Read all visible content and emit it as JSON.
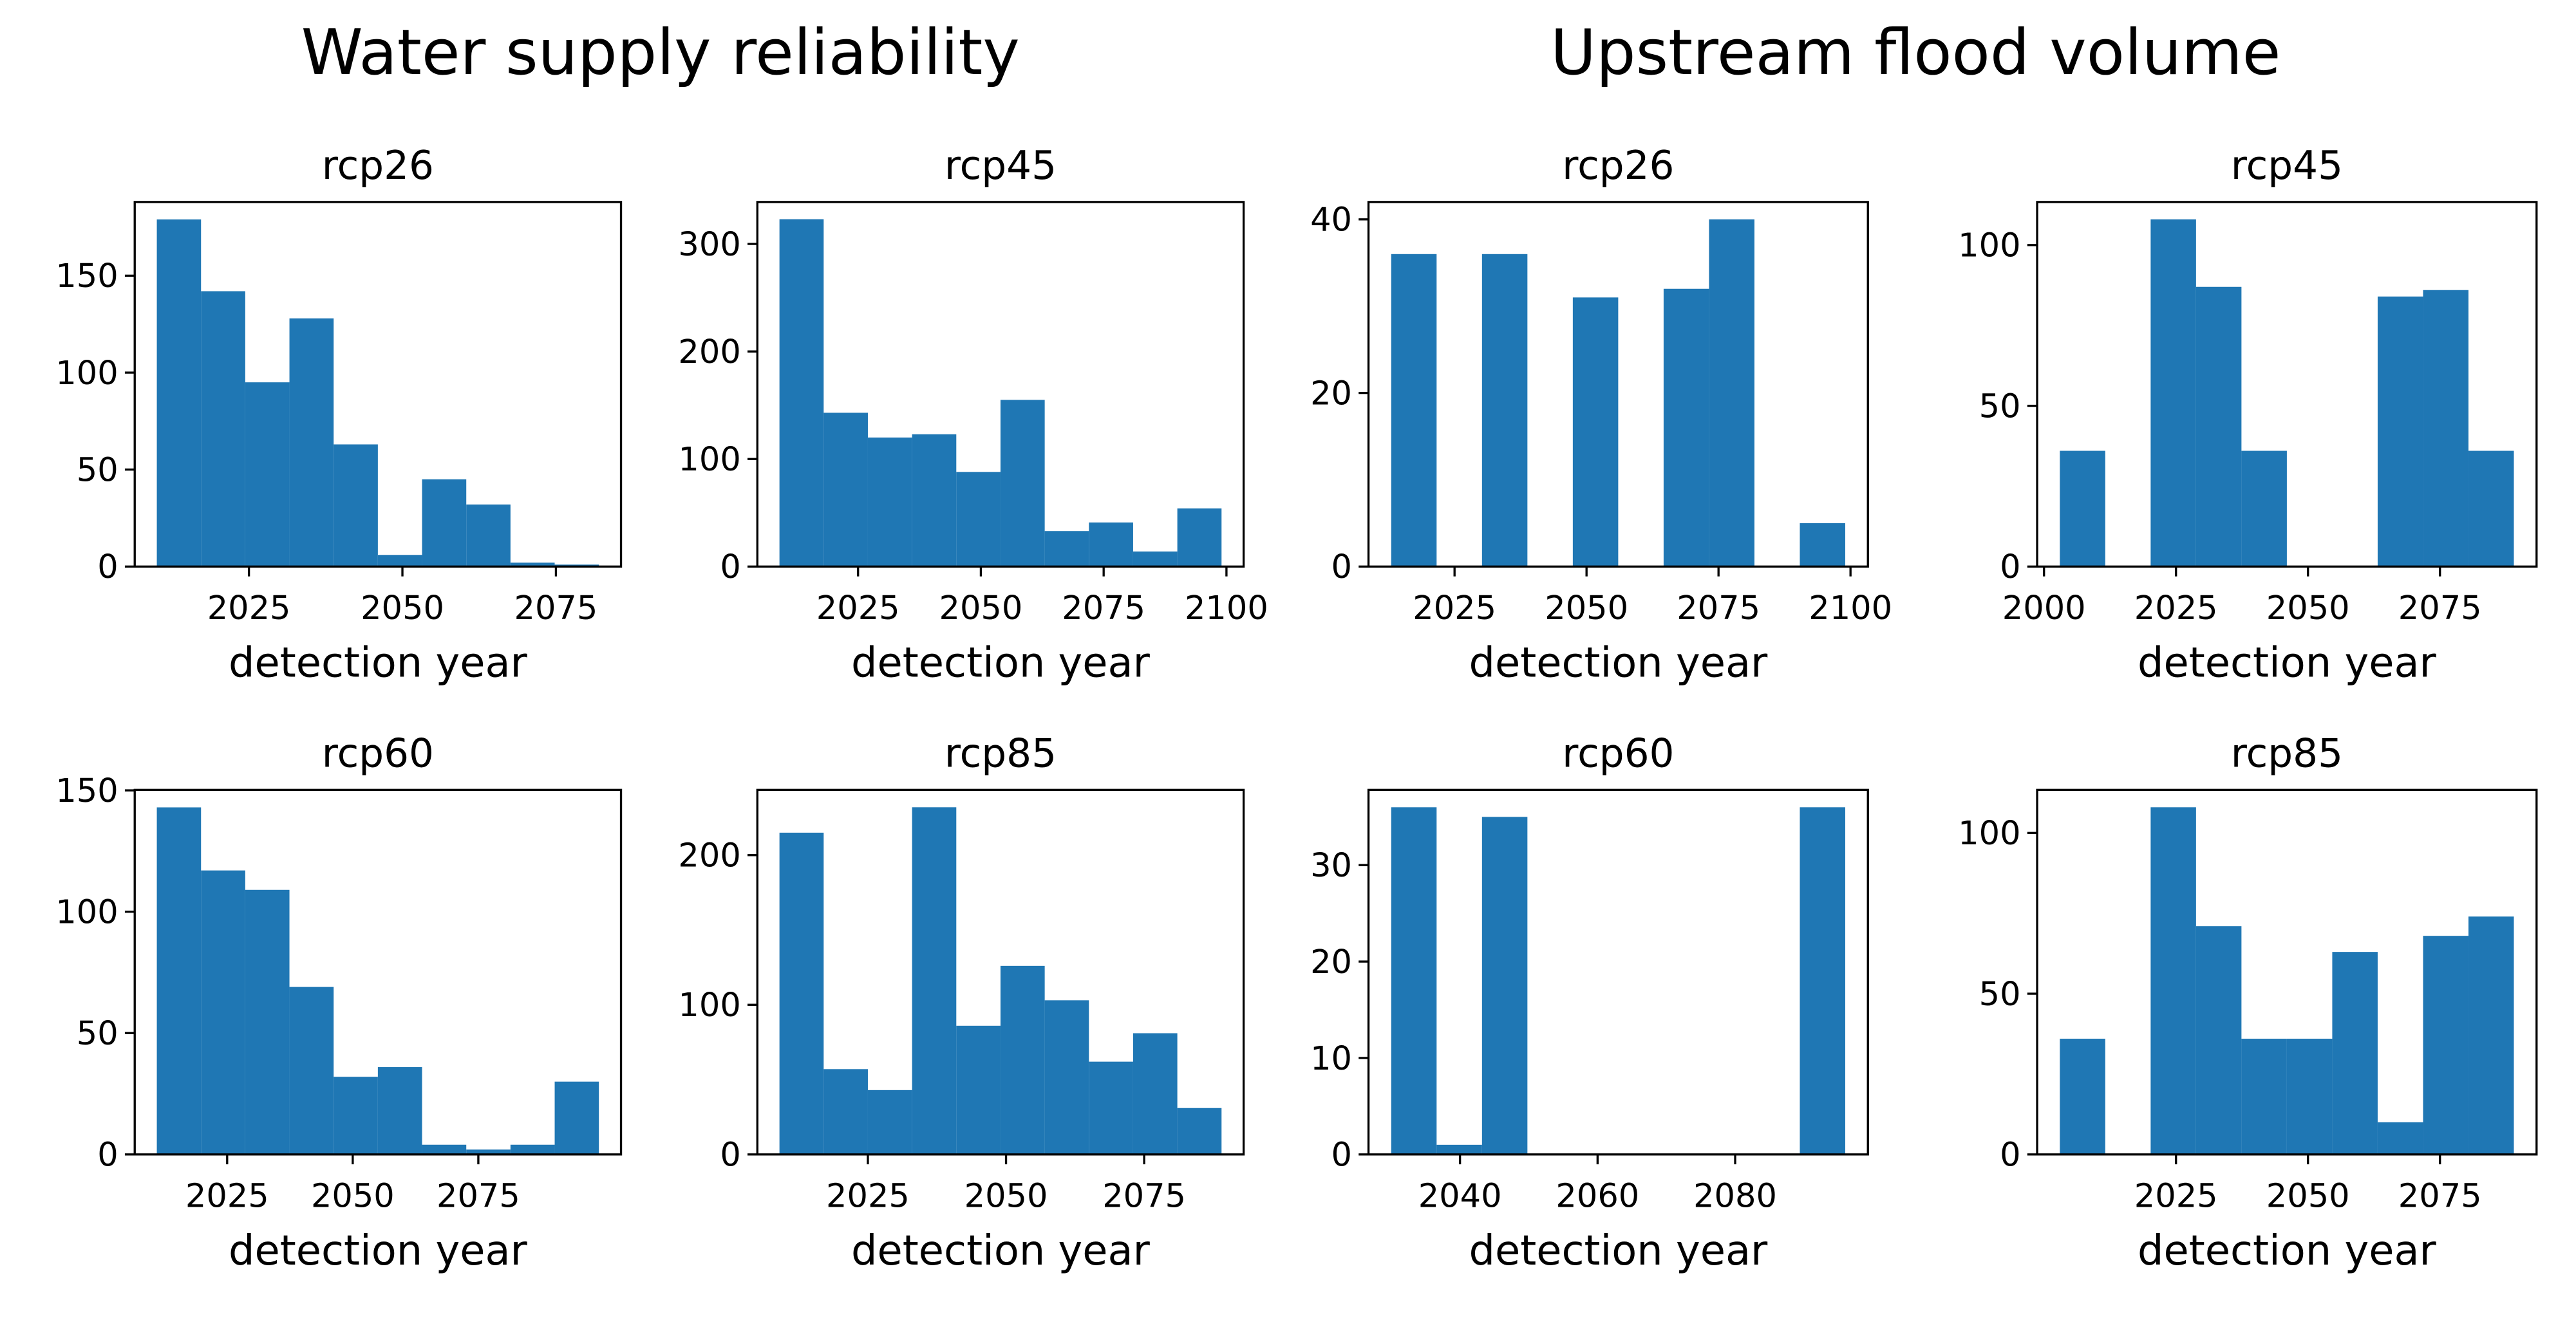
{
  "figure_titles": [
    "Water supply reliability",
    "Upstream flood volume"
  ],
  "chart_data": [
    {
      "type": "histogram",
      "title": "rcp26",
      "xlabel": "detection year",
      "color": "#1f77b4",
      "bins": [
        2010,
        2017.2,
        2024.4,
        2031.6,
        2038.8,
        2046,
        2053.2,
        2060.4,
        2067.6,
        2074.8,
        2082
      ],
      "counts": [
        179,
        142,
        95,
        128,
        63,
        6,
        45,
        32,
        2,
        1
      ],
      "xlim": [
        2006.4,
        2085.6
      ],
      "xticks": [
        2025,
        2050,
        2075
      ],
      "ylim": [
        0,
        188
      ],
      "yticks": [
        0,
        50,
        100,
        150
      ]
    },
    {
      "type": "histogram",
      "title": "rcp45",
      "xlabel": "detection year",
      "color": "#1f77b4",
      "bins": [
        2009,
        2018,
        2027,
        2036,
        2045,
        2054,
        2063,
        2072,
        2081,
        2090,
        2099
      ],
      "counts": [
        323,
        143,
        120,
        123,
        88,
        155,
        33,
        41,
        14,
        54
      ],
      "xlim": [
        2004.5,
        2103.5
      ],
      "xticks": [
        2025,
        2050,
        2075,
        2100
      ],
      "ylim": [
        0,
        339
      ],
      "yticks": [
        0,
        100,
        200,
        300
      ]
    },
    {
      "type": "histogram",
      "title": "rcp26",
      "xlabel": "detection year",
      "color": "#1f77b4",
      "bins": [
        2013,
        2021.6,
        2030.2,
        2038.8,
        2047.4,
        2056,
        2064.6,
        2073.2,
        2081.8,
        2090.4,
        2099
      ],
      "counts": [
        36,
        0,
        36,
        0,
        31,
        0,
        32,
        40,
        0,
        5
      ],
      "xlim": [
        2008.7,
        2103.3
      ],
      "xticks": [
        2025,
        2050,
        2075,
        2100
      ],
      "ylim": [
        0,
        42
      ],
      "yticks": [
        0,
        20,
        40
      ]
    },
    {
      "type": "histogram",
      "title": "rcp45",
      "xlabel": "detection year",
      "color": "#1f77b4",
      "bins": [
        2003,
        2011.6,
        2020.2,
        2028.8,
        2037.4,
        2046,
        2054.6,
        2063.2,
        2071.8,
        2080.4,
        2089
      ],
      "counts": [
        36,
        0,
        108,
        87,
        36,
        0,
        0,
        84,
        86,
        36
      ],
      "xlim": [
        1998.7,
        2093.3
      ],
      "xticks": [
        2000,
        2025,
        2050,
        2075
      ],
      "ylim": [
        0,
        113.4
      ],
      "yticks": [
        0,
        50,
        100
      ]
    },
    {
      "type": "histogram",
      "title": "rcp60",
      "xlabel": "detection year",
      "color": "#1f77b4",
      "bins": [
        2011,
        2019.8,
        2028.6,
        2037.4,
        2046.2,
        2055,
        2063.8,
        2072.6,
        2081.4,
        2090.2,
        2099
      ],
      "counts": [
        143,
        117,
        109,
        69,
        32,
        36,
        4,
        2,
        4,
        30
      ],
      "xlim": [
        2006.6,
        2103.4
      ],
      "xticks": [
        2025,
        2050,
        2075
      ],
      "ylim": [
        0,
        150.2
      ],
      "yticks": [
        0,
        50,
        100,
        150
      ]
    },
    {
      "type": "histogram",
      "title": "rcp85",
      "xlabel": "detection year",
      "color": "#1f77b4",
      "bins": [
        2009,
        2017,
        2025,
        2033,
        2041,
        2049,
        2057,
        2065,
        2073,
        2081,
        2089
      ],
      "counts": [
        215,
        57,
        43,
        232,
        86,
        126,
        103,
        62,
        81,
        31
      ],
      "xlim": [
        2005,
        2093
      ],
      "xticks": [
        2025,
        2050,
        2075
      ],
      "ylim": [
        0,
        243.6
      ],
      "yticks": [
        0,
        100,
        200
      ]
    },
    {
      "type": "histogram",
      "title": "rcp60",
      "xlabel": "detection year",
      "color": "#1f77b4",
      "bins": [
        2030,
        2036.6,
        2043.2,
        2049.8,
        2056.4,
        2063,
        2069.6,
        2076.2,
        2082.8,
        2089.4,
        2096
      ],
      "counts": [
        36,
        1,
        35,
        0,
        0,
        0,
        0,
        0,
        0,
        36
      ],
      "xlim": [
        2026.7,
        2099.3
      ],
      "xticks": [
        2040,
        2060,
        2080
      ],
      "ylim": [
        0,
        37.8
      ],
      "yticks": [
        0,
        10,
        20,
        30
      ]
    },
    {
      "type": "histogram",
      "title": "rcp85",
      "xlabel": "detection year",
      "color": "#1f77b4",
      "bins": [
        2003,
        2011.6,
        2020.2,
        2028.8,
        2037.4,
        2046,
        2054.6,
        2063.2,
        2071.8,
        2080.4,
        2089
      ],
      "counts": [
        36,
        0,
        108,
        71,
        36,
        36,
        63,
        10,
        68,
        74
      ],
      "xlim": [
        1998.7,
        2093.3
      ],
      "xticks": [
        2025,
        2050,
        2075
      ],
      "ylim": [
        0,
        113.4
      ],
      "yticks": [
        0,
        50,
        100
      ]
    }
  ]
}
